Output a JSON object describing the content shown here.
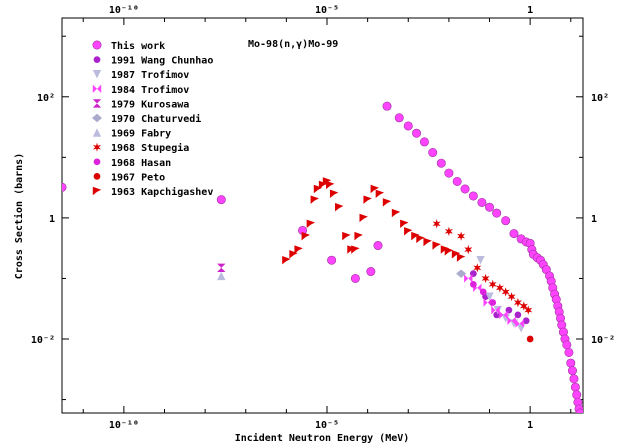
{
  "chart_data": {
    "type": "scatter",
    "title": "Mo-98(n,γ)Mo-99",
    "xlabel": "Incident Neutron Energy (MeV)",
    "ylabel": "Cross Section (barns)",
    "xscale": "log",
    "yscale": "log",
    "xlim": [
      3e-12,
      20
    ],
    "ylim": [
      0.0006,
      2000
    ],
    "grid": false,
    "legend_position": "top-left",
    "x_ticks": [
      {
        "value": 1e-10,
        "label": "10⁻¹⁰"
      },
      {
        "value": 1e-05,
        "label": "10⁻⁵"
      },
      {
        "value": 1,
        "label": "1"
      }
    ],
    "y_ticks": [
      {
        "value": 100,
        "label": "10²"
      },
      {
        "value": 1,
        "label": "1"
      },
      {
        "value": 0.01,
        "label": "10⁻²"
      }
    ],
    "series": [
      {
        "name": "This work",
        "marker": "circle",
        "color": "#ff44ff",
        "x": [
          3e-12,
          2.5e-08,
          2.5e-06,
          1.3e-05,
          5e-05,
          0.00012,
          0.00018,
          0.0003,
          0.0006,
          0.001,
          0.0016,
          0.0025,
          0.004,
          0.0065,
          0.01,
          0.016,
          0.025,
          0.04,
          0.065,
          0.1,
          0.15,
          0.25,
          0.4,
          0.6,
          0.8,
          1.0,
          1.1,
          1.2,
          1.5,
          1.8,
          2.1,
          2.5,
          3.0,
          3.3,
          3.6,
          4.0,
          4.4,
          4.8,
          5.2,
          5.6,
          6.0,
          6.6,
          7.2,
          8.0,
          9.0,
          10,
          11,
          12,
          13,
          14,
          15,
          16,
          17,
          18
        ],
        "y": [
          3.2,
          2.0,
          0.62,
          0.2,
          0.1,
          0.13,
          0.35,
          70,
          45,
          33,
          25,
          18,
          12,
          8,
          5.5,
          4.0,
          3.0,
          2.3,
          1.8,
          1.5,
          1.2,
          0.9,
          0.55,
          0.45,
          0.4,
          0.38,
          0.3,
          0.25,
          0.22,
          0.2,
          0.17,
          0.14,
          0.11,
          0.09,
          0.07,
          0.055,
          0.045,
          0.035,
          0.028,
          0.022,
          0.017,
          0.013,
          0.01,
          0.008,
          0.006,
          0.004,
          0.003,
          0.0022,
          0.0016,
          0.0012,
          0.0009,
          0.0007,
          0.0006,
          0.0005
        ]
      },
      {
        "name": "1991 Wang Chunhao",
        "marker": "circle-small",
        "color": "#aa22cc",
        "x": [
          0.04,
          0.08,
          0.15,
          0.3,
          0.5,
          0.8
        ],
        "y": [
          0.12,
          0.05,
          0.025,
          0.03,
          0.025,
          0.02
        ]
      },
      {
        "name": "1987 Trofimov",
        "marker": "tri-down",
        "color": "#bbbbdd",
        "x": [
          0.06,
          0.1,
          0.16,
          0.25,
          0.4,
          0.6
        ],
        "y": [
          0.2,
          0.05,
          0.03,
          0.022,
          0.018,
          0.015
        ]
      },
      {
        "name": "1984 Trofimov",
        "marker": "bowtie",
        "color": "#ff44ff",
        "x": [
          0.03,
          0.05,
          0.09,
          0.14,
          0.22,
          0.35,
          0.55
        ],
        "y": [
          0.1,
          0.07,
          0.04,
          0.03,
          0.025,
          0.02,
          0.018
        ]
      },
      {
        "name": "1979 Kurosawa",
        "marker": "hourglass",
        "color": "#cc22cc",
        "x": [
          2.5e-08
        ],
        "y": [
          0.15
        ]
      },
      {
        "name": "1970 Chaturvedi",
        "marker": "diamond",
        "color": "#aaaacc",
        "x": [
          0.02
        ],
        "y": [
          0.12
        ]
      },
      {
        "name": "1969 Fabry",
        "marker": "tri-up",
        "color": "#bbbbdd",
        "x": [
          2.5e-08
        ],
        "y": [
          0.11
        ]
      },
      {
        "name": "1968 Stupegia",
        "marker": "star",
        "color": "#dd0000",
        "x": [
          0.005,
          0.01,
          0.02,
          0.03,
          0.05,
          0.08,
          0.12,
          0.18,
          0.25,
          0.35,
          0.5,
          0.7,
          0.9
        ],
        "y": [
          0.8,
          0.6,
          0.5,
          0.3,
          0.15,
          0.1,
          0.08,
          0.07,
          0.06,
          0.05,
          0.04,
          0.035,
          0.03
        ]
      },
      {
        "name": "1968 Hasan",
        "marker": "circle-small",
        "color": "#dd22dd",
        "x": [
          0.04,
          0.07,
          0.12
        ],
        "y": [
          0.08,
          0.06,
          0.04
        ]
      },
      {
        "name": "1967 Peto",
        "marker": "circle-small",
        "color": "#dd0000",
        "x": [
          1.0
        ],
        "y": [
          0.01
        ]
      },
      {
        "name": "1963 Kapchigashev",
        "marker": "flag",
        "color": "#dd0000",
        "x": [
          1e-06,
          1.5e-06,
          2e-06,
          3e-06,
          4e-06,
          5e-06,
          6e-06,
          8e-06,
          1e-05,
          1.2e-05,
          1.5e-05,
          2e-05,
          3e-05,
          4e-05,
          5e-05,
          6e-05,
          8e-05,
          0.0001,
          0.00015,
          0.0002,
          0.0003,
          0.0005,
          0.0008,
          0.001,
          0.0015,
          0.002,
          0.003,
          0.005,
          0.008,
          0.01,
          0.015,
          0.02
        ],
        "y": [
          0.2,
          0.25,
          0.3,
          0.5,
          0.8,
          2.0,
          3.0,
          3.5,
          4.0,
          3.5,
          2.5,
          1.5,
          0.5,
          0.3,
          0.3,
          0.5,
          1.0,
          2.0,
          3.0,
          2.5,
          1.8,
          1.2,
          0.8,
          0.6,
          0.5,
          0.45,
          0.4,
          0.35,
          0.3,
          0.28,
          0.25,
          0.22
        ]
      }
    ]
  }
}
